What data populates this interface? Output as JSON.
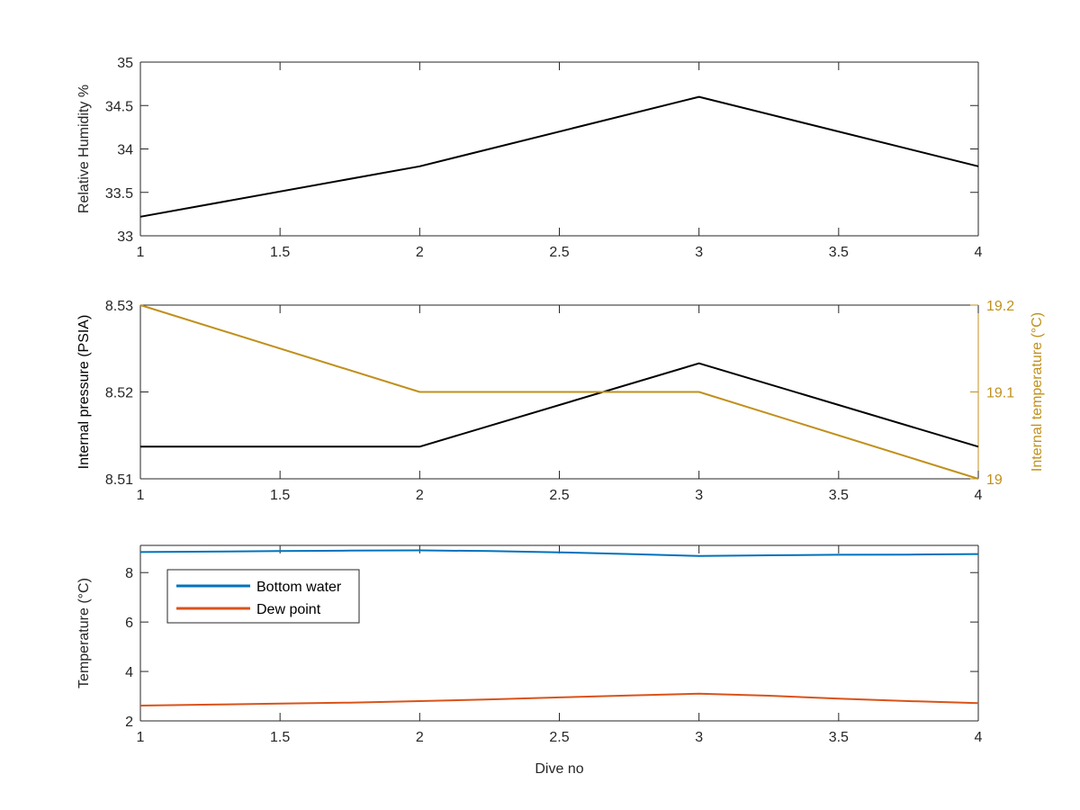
{
  "chart_data": [
    {
      "type": "line",
      "xlim": [
        1,
        4
      ],
      "ylim": [
        33,
        35
      ],
      "x_ticks": [
        "1",
        "1.5",
        "2",
        "2.5",
        "3",
        "3.5",
        "4"
      ],
      "y_ticks": [
        "33",
        "33.5",
        "34",
        "34.5",
        "35"
      ],
      "ylabel": "Relative Humidity %",
      "xlabel": "",
      "series": [
        {
          "color": "#000000",
          "x": [
            1,
            2,
            3,
            4
          ],
          "y": [
            33.22,
            33.8,
            34.6,
            33.8
          ]
        }
      ]
    },
    {
      "type": "line",
      "xlim": [
        1,
        4
      ],
      "ylim": [
        8.51,
        8.53
      ],
      "x_ticks": [
        "1",
        "1.5",
        "2",
        "2.5",
        "3",
        "3.5",
        "4"
      ],
      "y_ticks": [
        "8.51",
        "8.52",
        "8.53"
      ],
      "ylabel": "Internal pressure (PSIA)",
      "y2lim": [
        19,
        19.2
      ],
      "y2_ticks": [
        "19",
        "19.1",
        "19.2"
      ],
      "y2label": "Internal temperature (°C)",
      "y2color": "#C0901C",
      "series": [
        {
          "axis": "left",
          "color": "#000000",
          "x": [
            1,
            2,
            3,
            4
          ],
          "y": [
            8.5137,
            8.5137,
            8.5233,
            8.5137
          ]
        },
        {
          "axis": "right",
          "color": "#C0901C",
          "x": [
            1,
            2,
            3,
            4
          ],
          "y": [
            19.2,
            19.1,
            19.1,
            19.0
          ]
        }
      ]
    },
    {
      "type": "line",
      "xlim": [
        1,
        4
      ],
      "ylim": [
        2,
        9.1
      ],
      "x_ticks": [
        "1",
        "1.5",
        "2",
        "2.5",
        "3",
        "3.5",
        "4"
      ],
      "y_ticks": [
        "2",
        "4",
        "6",
        "8"
      ],
      "ylabel": "Temperature (°C)",
      "xlabel": "Dive no",
      "legend": "top-left",
      "series": [
        {
          "name": "Bottom water",
          "color": "#0072BD",
          "x": [
            1,
            1.25,
            1.5,
            1.75,
            2,
            2.25,
            2.5,
            2.75,
            3,
            3.25,
            3.5,
            3.75,
            4
          ],
          "y": [
            8.83,
            8.85,
            8.87,
            8.89,
            8.9,
            8.87,
            8.82,
            8.75,
            8.67,
            8.7,
            8.72,
            8.73,
            8.75
          ]
        },
        {
          "name": "Dew point",
          "color": "#D95319",
          "x": [
            1,
            1.25,
            1.5,
            1.75,
            2,
            2.25,
            2.5,
            2.75,
            3,
            3.25,
            3.5,
            3.75,
            4
          ],
          "y": [
            2.62,
            2.66,
            2.7,
            2.74,
            2.8,
            2.87,
            2.95,
            3.03,
            3.1,
            3.02,
            2.9,
            2.8,
            2.72
          ]
        }
      ]
    }
  ]
}
